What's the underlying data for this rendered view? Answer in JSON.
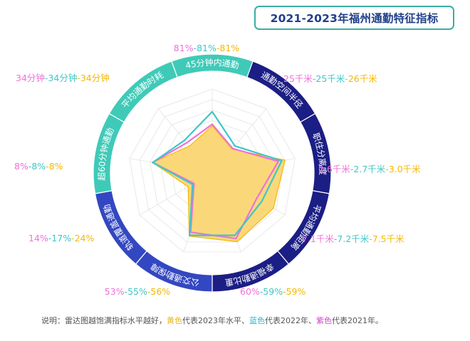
{
  "title": "2021-2023年福州通勤特征指标",
  "note": {
    "prefix": "说明：雷达图越饱满指标水平越好，",
    "yellow": "黄色",
    "mid1": "代表2023年水平、",
    "blue": "蓝色",
    "mid2": "代表2022年、",
    "purple": "紫色",
    "suffix": "代表2021年。"
  },
  "colors": {
    "y2023": "#f5b800",
    "y2023_fill": "#fad672",
    "y2022": "#3fc6c6",
    "y2021": "#ee72d8",
    "ring_teal": "#3fcab8",
    "ring_navy": "#1b1e84",
    "ring_blue": "#3347c2",
    "ring_text": "#ffffff"
  },
  "chart_data": {
    "type": "radar",
    "title": "2021-2023年福州通勤特征指标",
    "series_order": [
      "2021",
      "2022",
      "2023"
    ],
    "axes": [
      {
        "label": "45分钟内通勤",
        "values": [
          "81%",
          "81%",
          "81%"
        ]
      },
      {
        "label": "通勤空间半径",
        "values": [
          "25千米",
          "25千米",
          "26千米"
        ]
      },
      {
        "label": "职住分离度",
        "values": [
          "2.6千米",
          "2.7千米",
          "3.0千米"
        ]
      },
      {
        "label": "平均通勤距离",
        "values": [
          "7.1千米",
          "7.2千米",
          "7.5千米"
        ]
      },
      {
        "label": "幸福通勤比重",
        "values": [
          "60%",
          "59%",
          "59%"
        ]
      },
      {
        "label": "公交通勤保障",
        "values": [
          "53%",
          "55%",
          "56%"
        ]
      },
      {
        "label": "轨道覆盖通勤",
        "values": [
          "14%",
          "17%",
          "24%"
        ]
      },
      {
        "label": "超60分钟通勤",
        "values": [
          "8%",
          "8%",
          "8%"
        ]
      },
      {
        "label": "平均通勤时耗",
        "values": [
          "34分钟",
          "34分钟",
          "34分钟"
        ]
      }
    ],
    "series": [
      {
        "name": "2023年",
        "score": [
          0.56,
          0.37,
          0.88,
          0.84,
          0.87,
          0.8,
          0.33,
          0.72,
          0.42
        ]
      },
      {
        "name": "2022年",
        "score": [
          0.73,
          0.42,
          0.84,
          0.68,
          0.79,
          0.79,
          0.27,
          0.72,
          0.51
        ]
      },
      {
        "name": "2021年",
        "score": [
          0.58,
          0.38,
          0.8,
          0.61,
          0.83,
          0.75,
          0.25,
          0.72,
          0.47
        ]
      }
    ],
    "rmax": 1
  }
}
